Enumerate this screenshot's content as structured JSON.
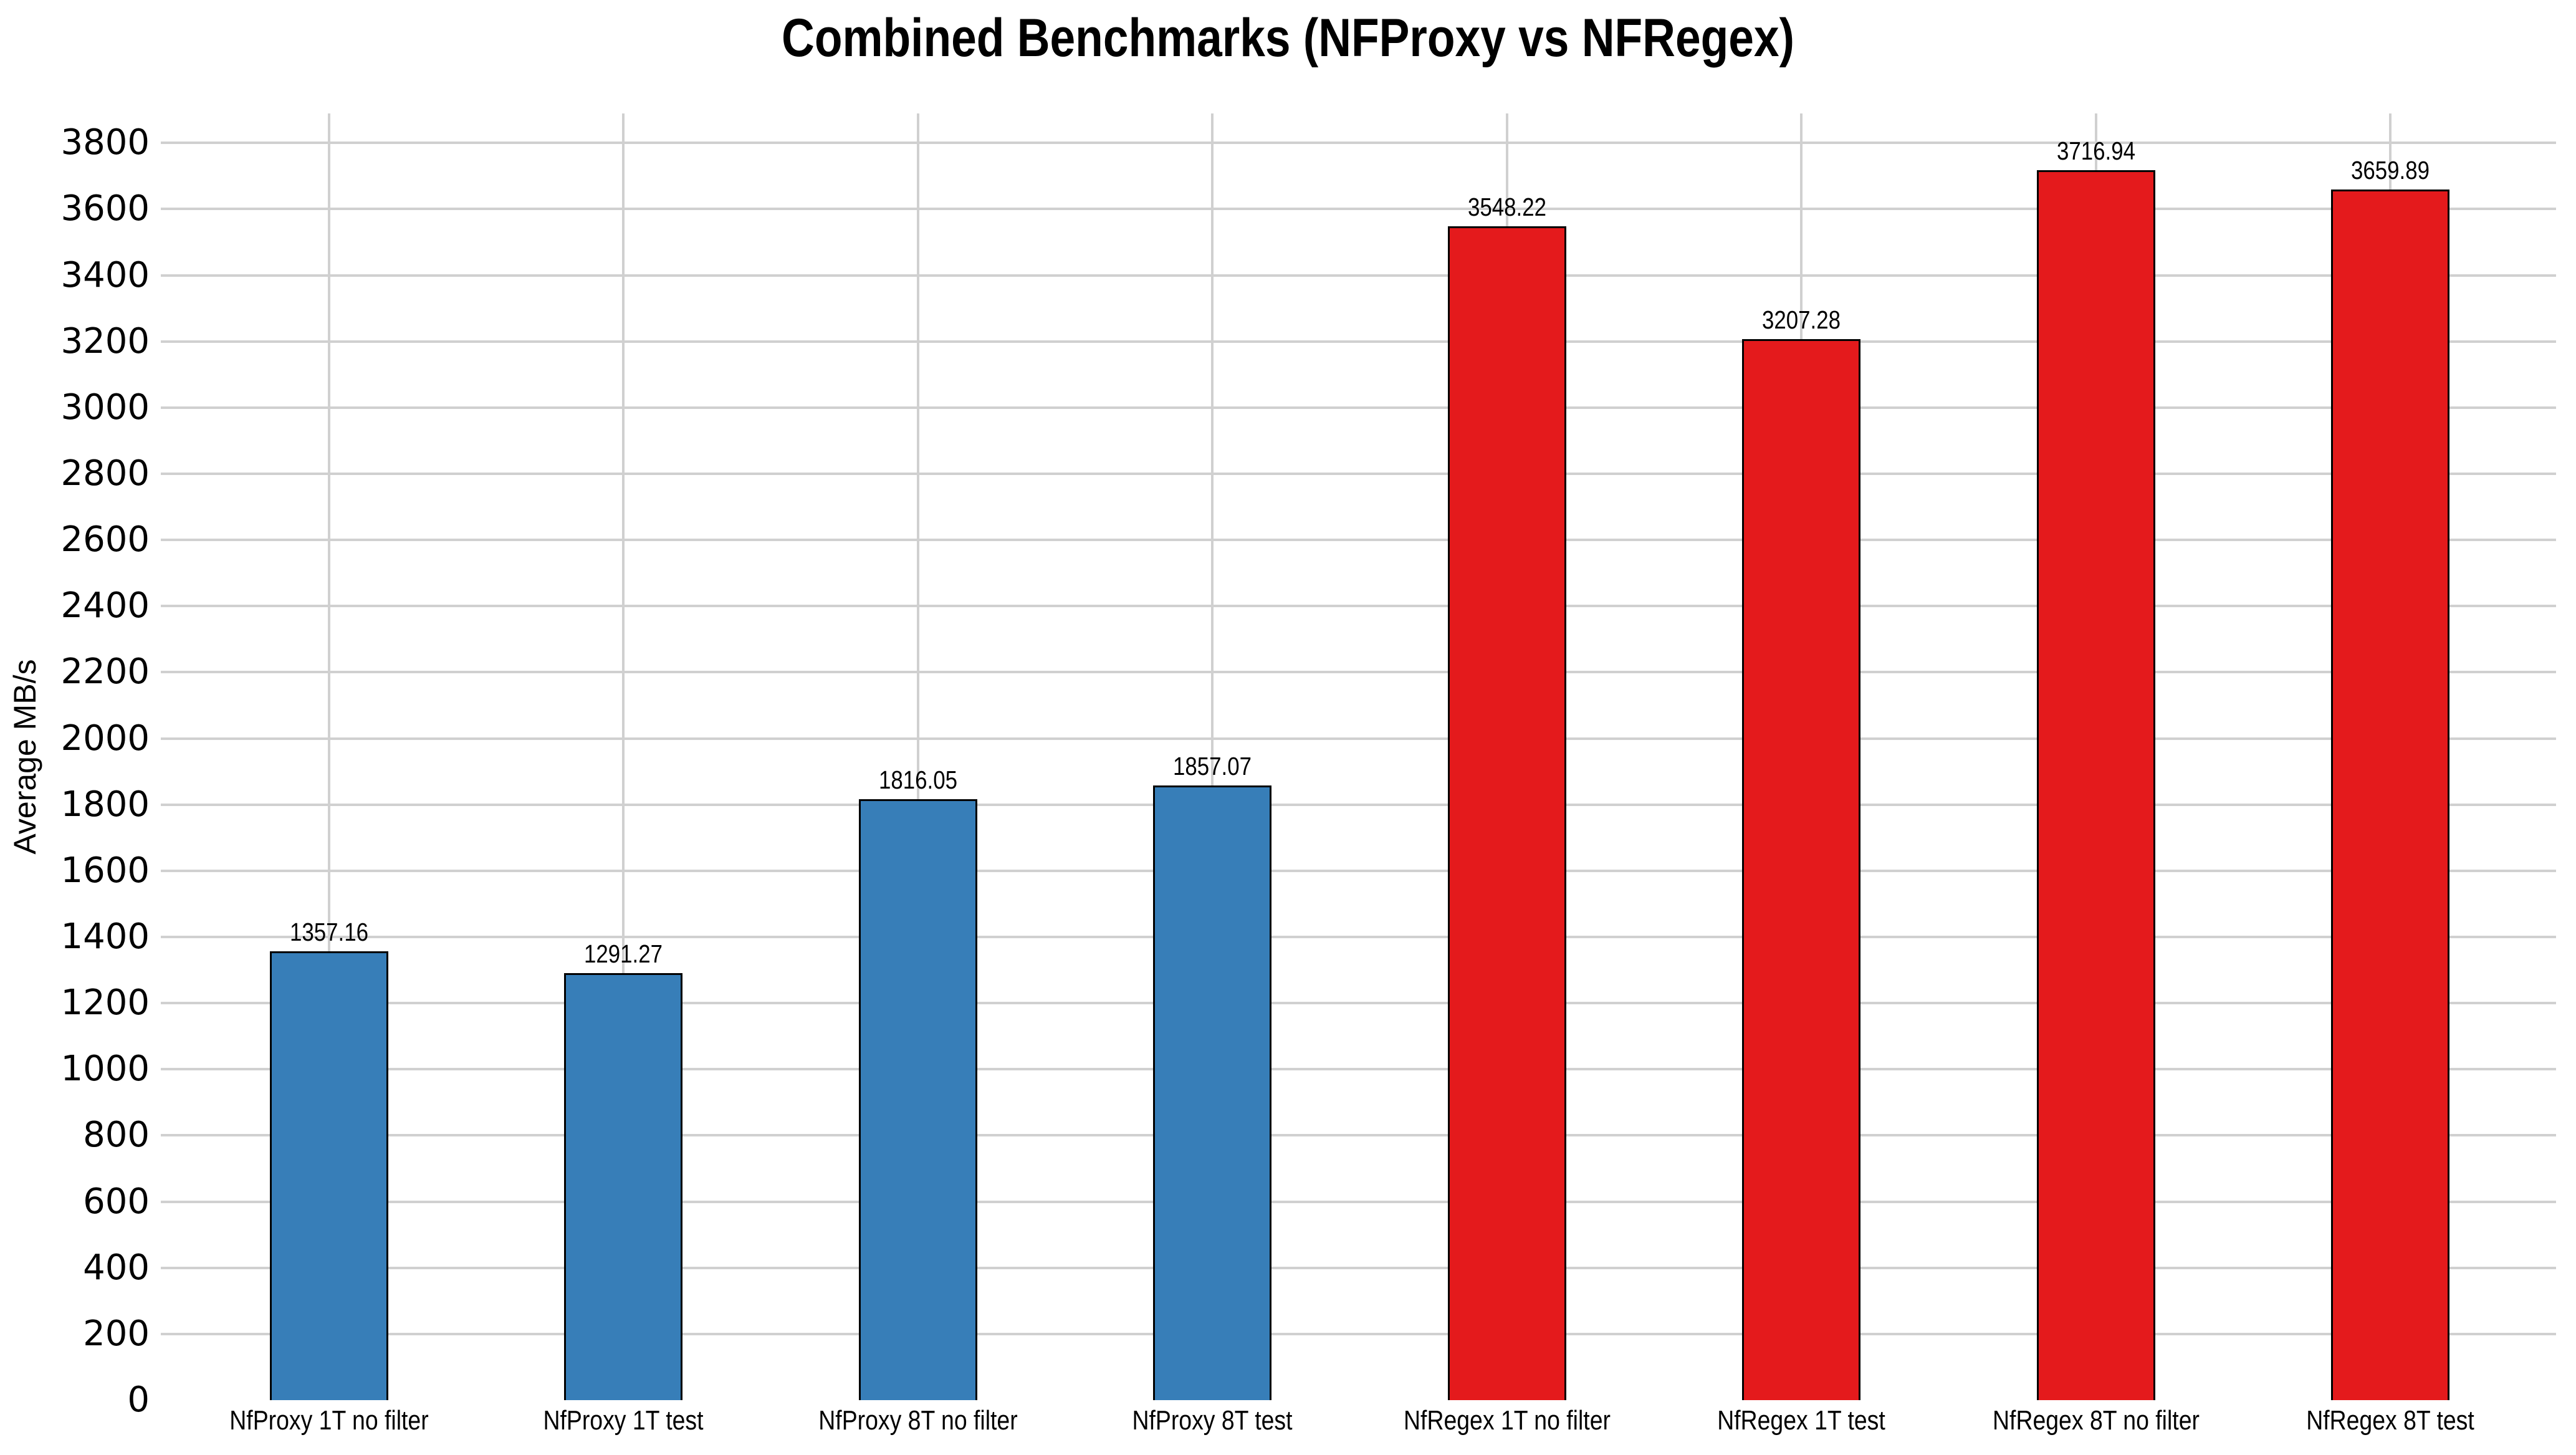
{
  "chart_data": {
    "type": "bar",
    "title": "Combined Benchmarks (NFProxy vs NFRegex)",
    "xlabel": "",
    "ylabel": "Average MB/s",
    "categories": [
      "NfProxy 1T no filter",
      "NfProxy 1T test",
      "NfProxy 8T no filter",
      "NfProxy 8T test",
      "NfRegex 1T no filter",
      "NfRegex 1T test",
      "NfRegex 8T no filter",
      "NfRegex 8T test"
    ],
    "values": [
      1357.16,
      1291.27,
      1816.05,
      1857.07,
      3548.22,
      3207.28,
      3716.94,
      3659.89
    ],
    "value_labels": [
      "1357.16",
      "1291.27",
      "1816.05",
      "1857.07",
      "3548.22",
      "3207.28",
      "3716.94",
      "3659.89"
    ],
    "bar_colors": [
      "#377eb8",
      "#377eb8",
      "#377eb8",
      "#377eb8",
      "#e41a1c",
      "#e41a1c",
      "#e41a1c",
      "#e41a1c"
    ],
    "yticks": [
      0,
      200,
      400,
      600,
      800,
      1000,
      1200,
      1400,
      1600,
      1800,
      2000,
      2200,
      2400,
      2600,
      2800,
      3000,
      3200,
      3400,
      3600,
      3800
    ],
    "ylim": [
      0,
      3890
    ],
    "grid": true,
    "legend": "none",
    "colors": {
      "nfproxy_blue": "#377eb8",
      "nfregex_red": "#e41a1c",
      "gridline": "#d0d0d0",
      "text": "#000000",
      "background": "#ffffff"
    }
  }
}
